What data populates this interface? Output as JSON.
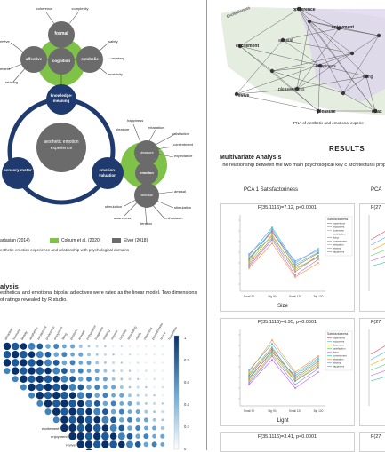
{
  "left": {
    "diagram": {
      "top_words": [
        "coherence",
        "complexity"
      ],
      "top_node": "formal",
      "mid_nodes": [
        "affective",
        "cognition",
        "symbolic"
      ],
      "left_words": [
        "revive",
        "ement",
        "relaxing"
      ],
      "right_words": [
        "safety",
        "mystery",
        "femininity"
      ],
      "center_top": "knowledge-meaning",
      "center": "aesthetic emotion experience",
      "left_node": "sensory-motor",
      "right_node": "emotion-valuation",
      "emotion_cluster": {
        "nodes": [
          "pleasure",
          "emotion",
          "arousal"
        ],
        "words_top": [
          "happiness",
          "relaxation",
          "satisfaction",
          "contentment",
          "expectance",
          "pleasure"
        ],
        "words_bottom": [
          "amusal",
          "stimulation",
          "enthusiasm",
          "tension",
          "awareness",
          "stimulation"
        ]
      }
    },
    "legend": {
      "items": [
        "artasian (2014)",
        "Coburn et al. (2020)",
        "Elver (2018)"
      ],
      "caption": "esthetic-emotion experience and relationship with psychological domains"
    },
    "analysis": {
      "heading": "alysis",
      "body": "esthetical and emotional bipolar adjectives were rated as the linear model. Two dimensions of ratings revealed by R studio."
    },
    "corr": {
      "col_labels": [
        "attraction",
        "harmony",
        "beauty",
        "aesthetics",
        "excitement",
        "preference",
        "enjoyment",
        "liking",
        "pleasure",
        "arousal",
        "enthusiasm",
        "happiness",
        "relaxing",
        "interest",
        "curiosity",
        "stimulating",
        "clarity",
        "closeness",
        "pleasantness",
        "revive",
        "happiness"
      ],
      "row_labels": [
        "",
        "",
        "",
        "",
        "",
        "excitement",
        "enjoyment",
        "revive",
        "pleasantness",
        "arousal"
      ],
      "scale": [
        "1",
        "0.8",
        "0.6",
        "0.4",
        "0.2",
        "0"
      ]
    }
  },
  "right": {
    "network": {
      "nodes": [
        "excitement",
        "preference",
        "enjoyment",
        "arousal",
        "happiness",
        "liking",
        "pleasantness",
        "revive",
        "pleasure",
        "relax",
        "Excitableness"
      ],
      "caption": "PNA of aesthetic and emotional experie"
    },
    "results": {
      "title": "RESULTS",
      "subtitle": "Multivariate Analysis",
      "body": "The relationship between the two main psychological key c architectural properties and boundary types are analysed."
    },
    "pca": {
      "col1_title": "PCA 1 Satisfactoriness",
      "col2_title": "PCA",
      "charts": [
        {
          "stat": "F(35,1116)=7.12, p<0.0001",
          "xlabel": "Size"
        },
        {
          "stat": "F(35,1116)=6.95, p<0.0001",
          "xlabel": "Light"
        },
        {
          "stat": "F(35,1116)=3.41, p<0.0001",
          "xlabel": ""
        }
      ],
      "right_stats": [
        "F(27",
        "F(27",
        "F(27"
      ],
      "legend_title": "Satisfactoriness",
      "legend_items": [
        "experience",
        "enjoyment",
        "closeness",
        "satisfaction",
        "liking",
        "contentment",
        "relaxation",
        "relaxing",
        "happiness"
      ],
      "x_ticks": [
        "Small 90",
        "Big 90",
        "Small 120",
        "Big 120"
      ]
    }
  }
}
